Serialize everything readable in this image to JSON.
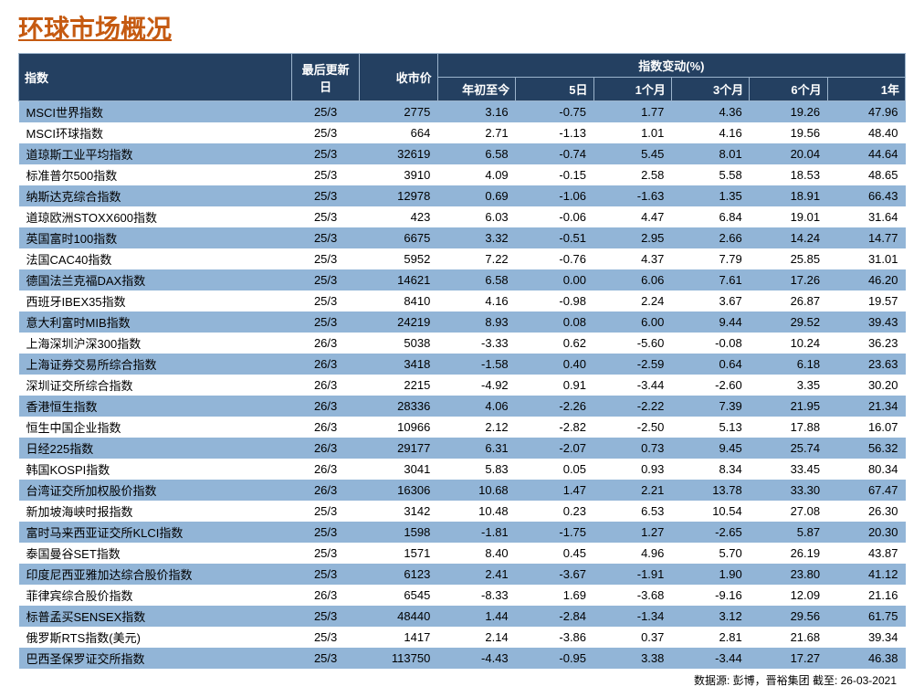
{
  "title": "环球市场概况",
  "title_color": "#c55a11",
  "footer": "数据源: 彭博，晋裕集团 截至: 26-03-2021",
  "header": {
    "col_index": "指数",
    "col_update": "最后更新日",
    "col_close": "收市价",
    "col_change_group": "指数变动(%)",
    "sub_ytd": "年初至今",
    "sub_5d": "5日",
    "sub_1m": "1个月",
    "sub_3m": "3个月",
    "sub_6m": "6个月",
    "sub_1y": "1年"
  },
  "colors": {
    "header_bg": "#244061",
    "header_text": "#ffffff",
    "row_even": "#92b5d7",
    "row_odd": "#ffffff",
    "text": "#000000"
  },
  "rows": [
    {
      "name": "MSCI世界指数",
      "date": "25/3",
      "close": "2775",
      "ytd": "3.16",
      "d5": "-0.75",
      "m1": "1.77",
      "m3": "4.36",
      "m6": "19.26",
      "y1": "47.96"
    },
    {
      "name": "MSCI环球指数",
      "date": "25/3",
      "close": "664",
      "ytd": "2.71",
      "d5": "-1.13",
      "m1": "1.01",
      "m3": "4.16",
      "m6": "19.56",
      "y1": "48.40"
    },
    {
      "name": "道琼斯工业平均指数",
      "date": "25/3",
      "close": "32619",
      "ytd": "6.58",
      "d5": "-0.74",
      "m1": "5.45",
      "m3": "8.01",
      "m6": "20.04",
      "y1": "44.64"
    },
    {
      "name": "标准普尔500指数",
      "date": "25/3",
      "close": "3910",
      "ytd": "4.09",
      "d5": "-0.15",
      "m1": "2.58",
      "m3": "5.58",
      "m6": "18.53",
      "y1": "48.65"
    },
    {
      "name": "纳斯达克综合指数",
      "date": "25/3",
      "close": "12978",
      "ytd": "0.69",
      "d5": "-1.06",
      "m1": "-1.63",
      "m3": "1.35",
      "m6": "18.91",
      "y1": "66.43"
    },
    {
      "name": "道琼欧洲STOXX600指数",
      "date": "25/3",
      "close": "423",
      "ytd": "6.03",
      "d5": "-0.06",
      "m1": "4.47",
      "m3": "6.84",
      "m6": "19.01",
      "y1": "31.64"
    },
    {
      "name": "英国富时100指数",
      "date": "25/3",
      "close": "6675",
      "ytd": "3.32",
      "d5": "-0.51",
      "m1": "2.95",
      "m3": "2.66",
      "m6": "14.24",
      "y1": "14.77"
    },
    {
      "name": "法国CAC40指数",
      "date": "25/3",
      "close": "5952",
      "ytd": "7.22",
      "d5": "-0.76",
      "m1": "4.37",
      "m3": "7.79",
      "m6": "25.85",
      "y1": "31.01"
    },
    {
      "name": "德国法兰克福DAX指数",
      "date": "25/3",
      "close": "14621",
      "ytd": "6.58",
      "d5": "0.00",
      "m1": "6.06",
      "m3": "7.61",
      "m6": "17.26",
      "y1": "46.20"
    },
    {
      "name": "西班牙IBEX35指数",
      "date": "25/3",
      "close": "8410",
      "ytd": "4.16",
      "d5": "-0.98",
      "m1": "2.24",
      "m3": "3.67",
      "m6": "26.87",
      "y1": "19.57"
    },
    {
      "name": "意大利富时MIB指数",
      "date": "25/3",
      "close": "24219",
      "ytd": "8.93",
      "d5": "0.08",
      "m1": "6.00",
      "m3": "9.44",
      "m6": "29.52",
      "y1": "39.43"
    },
    {
      "name": "上海深圳沪深300指数",
      "date": "26/3",
      "close": "5038",
      "ytd": "-3.33",
      "d5": "0.62",
      "m1": "-5.60",
      "m3": "-0.08",
      "m6": "10.24",
      "y1": "36.23"
    },
    {
      "name": "上海证券交易所综合指数",
      "date": "26/3",
      "close": "3418",
      "ytd": "-1.58",
      "d5": "0.40",
      "m1": "-2.59",
      "m3": "0.64",
      "m6": "6.18",
      "y1": "23.63"
    },
    {
      "name": "深圳证交所综合指数",
      "date": "26/3",
      "close": "2215",
      "ytd": "-4.92",
      "d5": "0.91",
      "m1": "-3.44",
      "m3": "-2.60",
      "m6": "3.35",
      "y1": "30.20"
    },
    {
      "name": "香港恒生指数",
      "date": "26/3",
      "close": "28336",
      "ytd": "4.06",
      "d5": "-2.26",
      "m1": "-2.22",
      "m3": "7.39",
      "m6": "21.95",
      "y1": "21.34"
    },
    {
      "name": "恒生中国企业指数",
      "date": "26/3",
      "close": "10966",
      "ytd": "2.12",
      "d5": "-2.82",
      "m1": "-2.50",
      "m3": "5.13",
      "m6": "17.88",
      "y1": "16.07"
    },
    {
      "name": "日经225指数",
      "date": "26/3",
      "close": "29177",
      "ytd": "6.31",
      "d5": "-2.07",
      "m1": "0.73",
      "m3": "9.45",
      "m6": "25.74",
      "y1": "56.32"
    },
    {
      "name": "韩国KOSPI指数",
      "date": "26/3",
      "close": "3041",
      "ytd": "5.83",
      "d5": "0.05",
      "m1": "0.93",
      "m3": "8.34",
      "m6": "33.45",
      "y1": "80.34"
    },
    {
      "name": "台湾证交所加权股价指数",
      "date": "26/3",
      "close": "16306",
      "ytd": "10.68",
      "d5": "1.47",
      "m1": "2.21",
      "m3": "13.78",
      "m6": "33.30",
      "y1": "67.47"
    },
    {
      "name": "新加坡海峡时报指数",
      "date": "25/3",
      "close": "3142",
      "ytd": "10.48",
      "d5": "0.23",
      "m1": "6.53",
      "m3": "10.54",
      "m6": "27.08",
      "y1": "26.30"
    },
    {
      "name": "富时马来西亚证交所KLCI指数",
      "date": "25/3",
      "close": "1598",
      "ytd": "-1.81",
      "d5": "-1.75",
      "m1": "1.27",
      "m3": "-2.65",
      "m6": "5.87",
      "y1": "20.30"
    },
    {
      "name": "泰国曼谷SET指数",
      "date": "25/3",
      "close": "1571",
      "ytd": "8.40",
      "d5": "0.45",
      "m1": "4.96",
      "m3": "5.70",
      "m6": "26.19",
      "y1": "43.87"
    },
    {
      "name": "印度尼西亚雅加达综合股价指数",
      "date": "25/3",
      "close": "6123",
      "ytd": "2.41",
      "d5": "-3.67",
      "m1": "-1.91",
      "m3": "1.90",
      "m6": "23.80",
      "y1": "41.12"
    },
    {
      "name": "菲律宾综合股价指数",
      "date": "26/3",
      "close": "6545",
      "ytd": "-8.33",
      "d5": "1.69",
      "m1": "-3.68",
      "m3": "-9.16",
      "m6": "12.09",
      "y1": "21.16"
    },
    {
      "name": "标普孟买SENSEX指数",
      "date": "25/3",
      "close": "48440",
      "ytd": "1.44",
      "d5": "-2.84",
      "m1": "-1.34",
      "m3": "3.12",
      "m6": "29.56",
      "y1": "61.75"
    },
    {
      "name": "俄罗斯RTS指数(美元)",
      "date": "25/3",
      "close": "1417",
      "ytd": "2.14",
      "d5": "-3.86",
      "m1": "0.37",
      "m3": "2.81",
      "m6": "21.68",
      "y1": "39.34"
    },
    {
      "name": "巴西圣保罗证交所指数",
      "date": "25/3",
      "close": "113750",
      "ytd": "-4.43",
      "d5": "-0.95",
      "m1": "3.38",
      "m3": "-3.44",
      "m6": "17.27",
      "y1": "46.38"
    }
  ]
}
